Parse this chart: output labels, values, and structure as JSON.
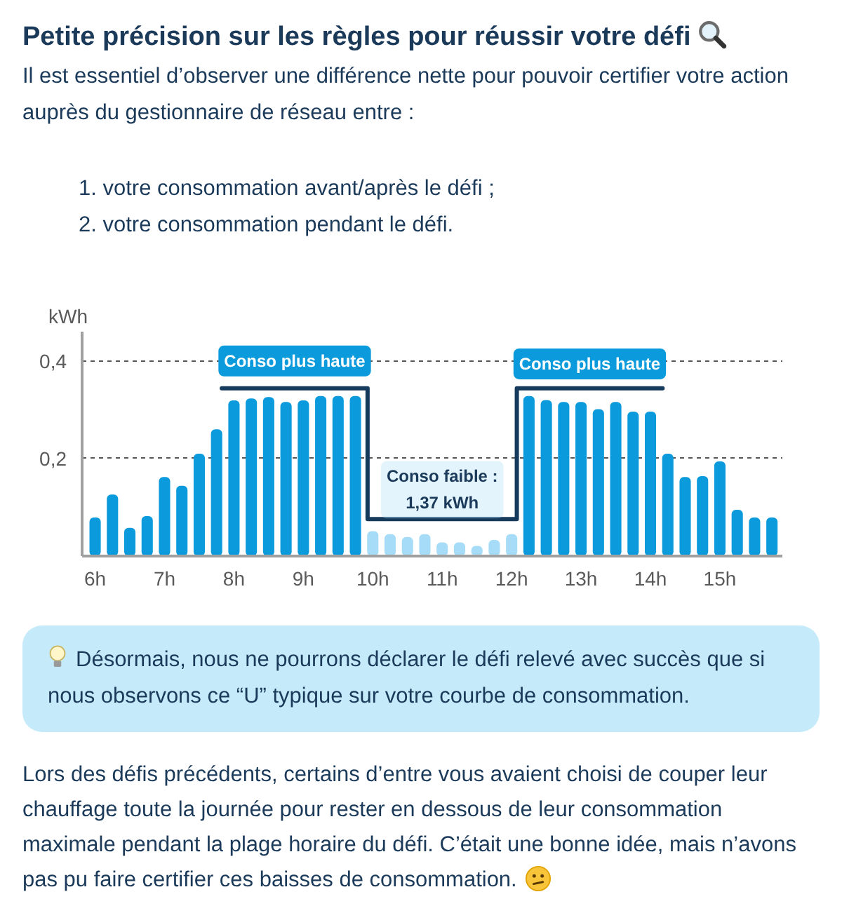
{
  "chart_data": {
    "type": "bar",
    "title": "Petite précision sur les règles pour réussir votre défi",
    "subtitle": "Il est essentiel d’observer une différence nette pour pouvoir certifier votre action auprès du gestionnaire de réseau entre :",
    "ylabel": "kWh",
    "categories": [
      "6h",
      null,
      null,
      null,
      "7h",
      null,
      null,
      null,
      "8h",
      null,
      null,
      null,
      "9h",
      null,
      null,
      null,
      "10h",
      null,
      null,
      null,
      "11h",
      null,
      null,
      null,
      "12h",
      null,
      null,
      null,
      "13h",
      null,
      null,
      null,
      "14h",
      null,
      null,
      null,
      "15h",
      null,
      null,
      null
    ],
    "values": [
      0.079,
      0.126,
      0.058,
      0.082,
      0.162,
      0.144,
      0.21,
      0.26,
      0.319,
      0.323,
      0.326,
      0.316,
      0.319,
      0.328,
      0.328,
      0.328,
      0.051,
      0.045,
      0.039,
      0.045,
      0.028,
      0.028,
      0.021,
      0.033,
      0.045,
      0.328,
      0.32,
      0.316,
      0.316,
      0.301,
      0.316,
      0.296,
      0.296,
      0.21,
      0.162,
      0.164,
      0.194,
      0.095,
      0.079,
      0.079
    ],
    "colors": [
      "#0b9bdc",
      "#0b9bdc",
      "#0b9bdc",
      "#0b9bdc",
      "#0b9bdc",
      "#0b9bdc",
      "#0b9bdc",
      "#0b9bdc",
      "#0b9bdc",
      "#0b9bdc",
      "#0b9bdc",
      "#0b9bdc",
      "#0b9bdc",
      "#0b9bdc",
      "#0b9bdc",
      "#0b9bdc",
      "#a6dcf7",
      "#a6dcf7",
      "#a6dcf7",
      "#a6dcf7",
      "#a6dcf7",
      "#a6dcf7",
      "#a6dcf7",
      "#a6dcf7",
      "#a6dcf7",
      "#0b9bdc",
      "#0b9bdc",
      "#0b9bdc",
      "#0b9bdc",
      "#0b9bdc",
      "#0b9bdc",
      "#0b9bdc",
      "#0b9bdc",
      "#0b9bdc",
      "#0b9bdc",
      "#0b9bdc",
      "#0b9bdc",
      "#0b9bdc",
      "#0b9bdc",
      "#0b9bdc"
    ],
    "ylim": [
      0,
      0.46
    ],
    "yticks": [
      {
        "value": 0.2,
        "label": "0,2"
      },
      {
        "value": 0.4,
        "label": "0,4"
      }
    ],
    "grid": "y",
    "annotations": [
      "1. votre consommation avant/après le défi ;",
      "2. votre consommation pendant le défi.",
      "Conso plus haute",
      "Conso plus haute",
      "Conso faible : 1,37 kWh",
      "Désormais, nous ne pourrons déclarer le défi relevé avec succès que si nous observons ce “U” typique sur votre courbe de consommation.",
      "Lors des défis précédents, certains d’entre vous avaient choisi de couper leur chauffage toute la journée pour rester en dessous de leur consommation maximale pendant la plage horaire du défi. C’était une bonne idée, mais n’avons pas pu faire certifier ces baisses de consommation."
    ]
  }
}
